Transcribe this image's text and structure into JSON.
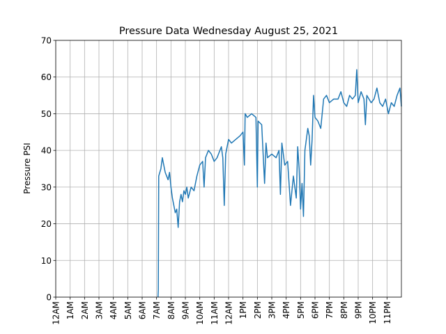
{
  "chart_data": {
    "type": "line",
    "title": "Pressure Data Wednesday August 25, 2021",
    "y_label": "Pressure PSI",
    "color": "#1f77b4",
    "grid": true,
    "xlim": [
      0,
      24
    ],
    "ylim": [
      0,
      70
    ],
    "yticks": [
      0,
      10,
      20,
      30,
      40,
      50,
      60,
      70
    ],
    "xticks": [
      {
        "value": 0,
        "label": "12AM"
      },
      {
        "value": 1,
        "label": "1AM"
      },
      {
        "value": 2,
        "label": "2AM"
      },
      {
        "value": 3,
        "label": "3AM"
      },
      {
        "value": 4,
        "label": "4AM"
      },
      {
        "value": 5,
        "label": "5AM"
      },
      {
        "value": 6,
        "label": "6AM"
      },
      {
        "value": 7,
        "label": "7AM"
      },
      {
        "value": 8,
        "label": "8AM"
      },
      {
        "value": 9,
        "label": "9AM"
      },
      {
        "value": 10,
        "label": "10AM"
      },
      {
        "value": 11,
        "label": "11AM"
      },
      {
        "value": 12,
        "label": "12AM"
      },
      {
        "value": 13,
        "label": "1PM"
      },
      {
        "value": 14,
        "label": "2PM"
      },
      {
        "value": 15,
        "label": "3PM"
      },
      {
        "value": 16,
        "label": "4PM"
      },
      {
        "value": 17,
        "label": "5PM"
      },
      {
        "value": 18,
        "label": "6PM"
      },
      {
        "value": 19,
        "label": "7PM"
      },
      {
        "value": 20,
        "label": "8PM"
      },
      {
        "value": 21,
        "label": "9PM"
      },
      {
        "value": 22,
        "label": "10PM"
      },
      {
        "value": 23,
        "label": "11PM"
      }
    ],
    "x": [
      7.1,
      7.12,
      7.15,
      7.3,
      7.4,
      7.5,
      7.6,
      7.8,
      7.9,
      8.0,
      8.1,
      8.2,
      8.3,
      8.4,
      8.5,
      8.6,
      8.7,
      8.8,
      8.9,
      9.0,
      9.1,
      9.2,
      9.4,
      9.6,
      9.8,
      10.0,
      10.2,
      10.3,
      10.4,
      10.6,
      10.8,
      11.0,
      11.2,
      11.4,
      11.5,
      11.6,
      11.7,
      11.8,
      12.0,
      12.2,
      12.5,
      12.8,
      13.0,
      13.1,
      13.15,
      13.3,
      13.6,
      13.9,
      14.0,
      14.05,
      14.3,
      14.5,
      14.6,
      14.7,
      15.0,
      15.3,
      15.5,
      15.6,
      15.7,
      15.9,
      16.1,
      16.3,
      16.5,
      16.7,
      16.8,
      16.9,
      17.0,
      17.1,
      17.2,
      17.3,
      17.5,
      17.6,
      17.7,
      17.8,
      17.9,
      18.0,
      18.2,
      18.4,
      18.5,
      18.6,
      18.8,
      19.0,
      19.3,
      19.6,
      19.8,
      20.0,
      20.2,
      20.4,
      20.6,
      20.8,
      20.9,
      21.0,
      21.2,
      21.4,
      21.5,
      21.6,
      21.9,
      22.1,
      22.3,
      22.5,
      22.7,
      22.9,
      23.1,
      23.3,
      23.5,
      23.7,
      23.9,
      24.0
    ],
    "values": [
      0,
      2,
      33,
      35,
      38,
      36,
      34,
      32,
      34,
      30,
      27,
      25,
      23,
      24,
      19,
      26,
      28,
      26,
      29,
      28,
      30,
      27,
      30,
      29,
      33,
      36,
      37,
      30,
      38,
      40,
      39,
      37,
      38,
      40,
      41,
      38,
      25,
      39,
      43,
      42,
      43,
      44,
      45,
      36,
      50,
      49,
      50,
      49,
      30,
      48,
      47,
      31,
      42,
      38,
      39,
      38,
      40,
      28,
      42,
      36,
      37,
      25,
      33,
      27,
      41,
      35,
      24,
      31,
      22,
      40,
      46,
      44,
      36,
      43,
      55,
      49,
      48,
      46,
      50,
      54,
      55,
      53,
      54,
      54,
      56,
      53,
      52,
      55,
      54,
      55,
      62,
      53,
      56,
      54,
      47,
      55,
      53,
      54,
      57,
      53,
      52,
      54,
      50,
      53,
      52,
      55,
      57,
      52
    ]
  }
}
